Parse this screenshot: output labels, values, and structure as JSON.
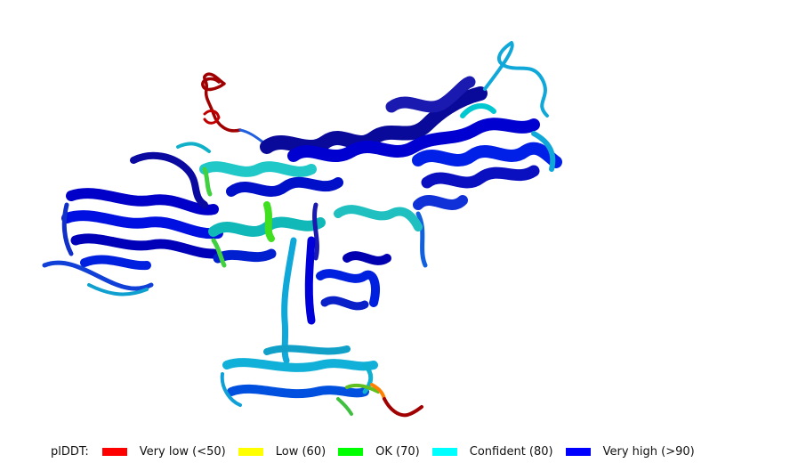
{
  "legend": {
    "title": "plDDT:",
    "items": [
      {
        "label": "Very low (<50)",
        "color": "#ff0000"
      },
      {
        "label": "Low (60)",
        "color": "#ffff00"
      },
      {
        "label": "OK (70)",
        "color": "#00ff00"
      },
      {
        "label": "Confident (80)",
        "color": "#00ffff"
      },
      {
        "label": "Very high (>90)",
        "color": "#0000ff"
      }
    ]
  },
  "colors": {
    "very_low": "#ff0000",
    "low": "#ffff00",
    "ok": "#00ff00",
    "confident": "#00ffff",
    "very_high": "#0000ff",
    "dark_blue": "#0a0a9a",
    "mid_blue": "#1040e0",
    "cyan_blue": "#10a8d8",
    "dark_red": "#a00000"
  }
}
